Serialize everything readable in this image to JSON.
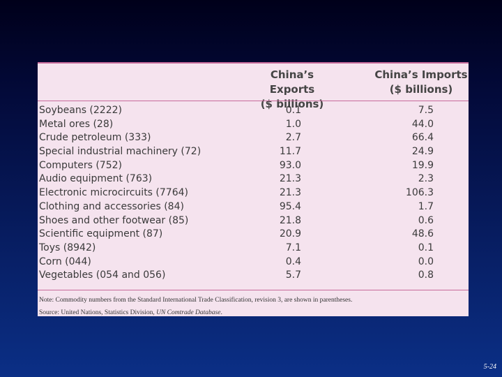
{
  "table": {
    "col_exports": "China's Exports ($ billions)",
    "col_exports_line1": "China’s Exports",
    "col_exports_line2": "($ billions)",
    "col_imports_line1": "China’s Imports",
    "col_imports_line2": "($ billions)",
    "rows": [
      {
        "name": "Soybeans (2222)",
        "exports": "0.1",
        "imports": "7.5"
      },
      {
        "name": "Metal ores (28)",
        "exports": "1.0",
        "imports": "44.0"
      },
      {
        "name": "Crude petroleum (333)",
        "exports": "2.7",
        "imports": "66.4"
      },
      {
        "name": "Special industrial machinery (72)",
        "exports": "11.7",
        "imports": "24.9"
      },
      {
        "name": "Computers (752)",
        "exports": "93.0",
        "imports": "19.9"
      },
      {
        "name": "Audio equipment (763)",
        "exports": "21.3",
        "imports": "2.3"
      },
      {
        "name": "Electronic microcircuits (7764)",
        "exports": "21.3",
        "imports": "106.3"
      },
      {
        "name": "Clothing and accessories (84)",
        "exports": "95.4",
        "imports": "1.7"
      },
      {
        "name": "Shoes and other footwear (85)",
        "exports": "21.8",
        "imports": "0.6"
      },
      {
        "name": "Scientific equipment (87)",
        "exports": "20.9",
        "imports": "48.6"
      },
      {
        "name": "Toys (8942)",
        "exports": "7.1",
        "imports": "0.1"
      },
      {
        "name": "Corn (044)",
        "exports": "0.4",
        "imports": "0.0"
      },
      {
        "name": "Vegetables (054 and 056)",
        "exports": "5.7",
        "imports": "0.8"
      }
    ],
    "note": "Note: Commodity numbers from the Standard International Trade Classification, revision 3, are shown in parentheses.",
    "source_prefix": "Source: United Nations, Statistics Division, ",
    "source_title": "UN Comtrade Database",
    "source_suffix": "."
  },
  "slide": {
    "number": "5-24"
  }
}
